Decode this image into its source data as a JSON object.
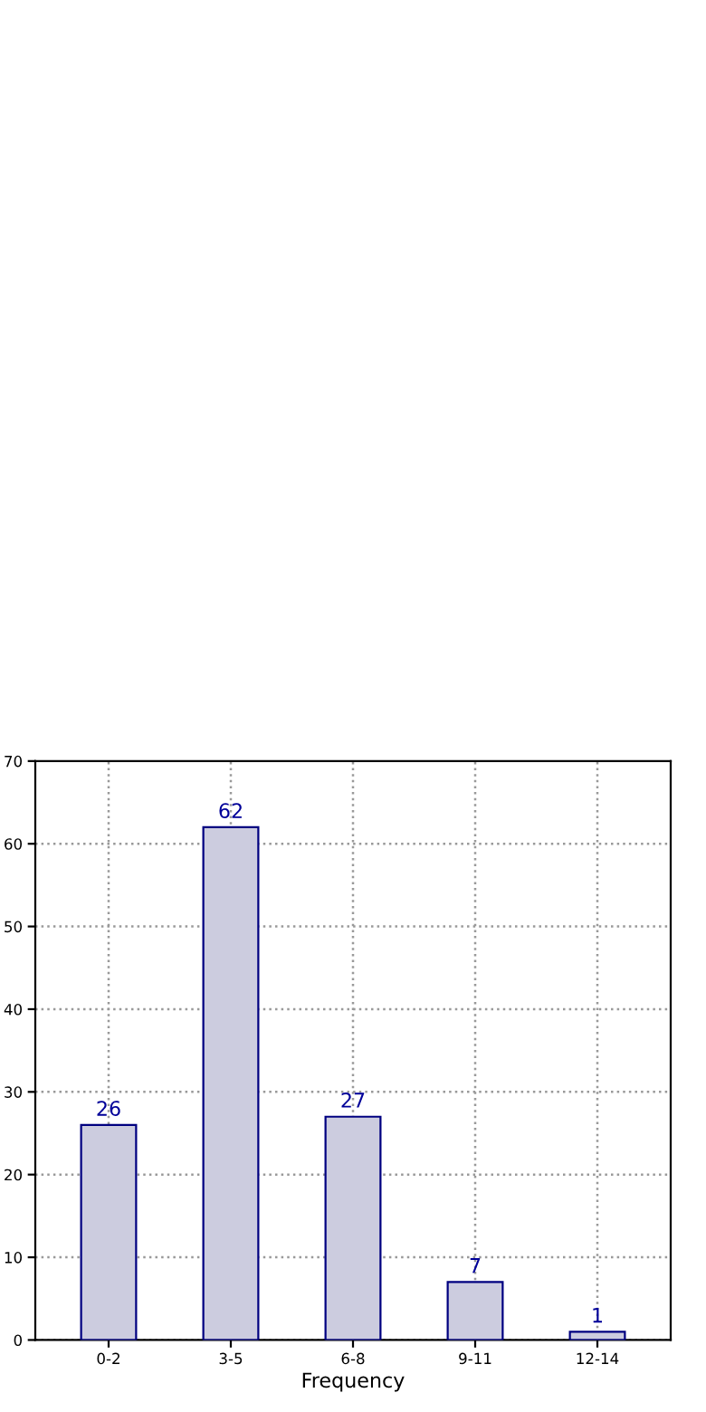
{
  "chart_data": {
    "type": "bar",
    "xlabel": "Frequency",
    "categories": [
      "0-2",
      "3-5",
      "6-8",
      "9-11",
      "12-14"
    ],
    "values": [
      26,
      62,
      27,
      7,
      1
    ],
    "color": "#ccccdf",
    "ylim": [
      0,
      70
    ],
    "yticks": [
      0,
      10,
      20,
      30,
      40,
      50,
      60,
      70
    ],
    "grid": true,
    "data_labels": true
  }
}
